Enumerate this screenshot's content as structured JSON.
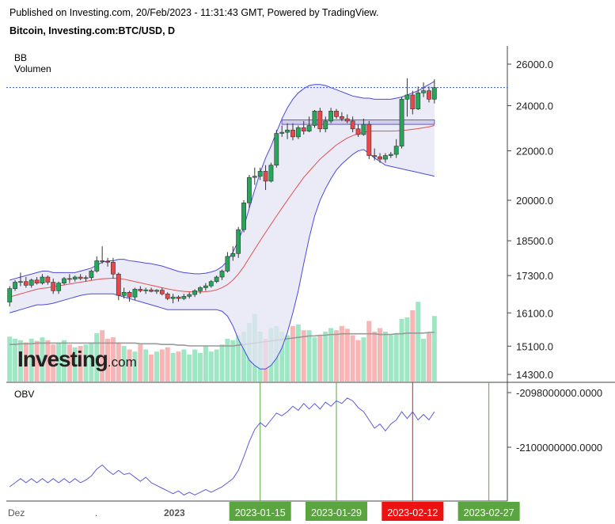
{
  "header": {
    "published": "Published on Investing.com, 20/Feb/2023 - 11:31:43 GMT, Powered by TradingView.",
    "symbol": "Bitcoin, Investing.com:BTC/USD, D"
  },
  "indicators": {
    "bb": "BB",
    "volume": "Volumen",
    "obv": "OBV"
  },
  "logo": {
    "main": "Investing",
    "suffix": ".com"
  },
  "colors": {
    "up": "#26a65b",
    "down": "#e8474b",
    "band": "#4a4adb",
    "band_fill": "#e4e4f4",
    "basis": "#e05050",
    "last_price": "#3b5bdb",
    "obv_line": "#5b5bdb",
    "vol_up": "#9ee6c4",
    "vol_down": "#f7b5b5",
    "vol_ma": "#999999",
    "date_green": "#5aa540",
    "date_red": "#ee1111"
  },
  "chart_data": [
    {
      "type": "candlestick",
      "name": "BTC/USD",
      "ylabel_ticks": [
        "26000.0",
        "24000.0",
        "22000.0",
        "20000.0",
        "18500.0",
        "17300.0",
        "16100.0",
        "15100.0",
        "14300.0"
      ],
      "ytick_values": [
        26000,
        24000,
        22000,
        20000,
        18500,
        17300,
        16100,
        15100,
        14300
      ],
      "y_scale": "log",
      "last_price": 24850,
      "x_labels": [
        "Dez",
        "2023",
        "2023-01-15",
        "2023-01-29",
        "2023-02-12",
        "2023-02-27"
      ],
      "x_label_positions": [
        0,
        32,
        46,
        60,
        74,
        88
      ],
      "ohlc": [
        [
          16440,
          16950,
          16300,
          16870
        ],
        [
          16870,
          17150,
          16800,
          17080
        ],
        [
          17080,
          17400,
          16950,
          17100
        ],
        [
          17100,
          17250,
          16900,
          16980
        ],
        [
          16980,
          17200,
          16900,
          17150
        ],
        [
          17150,
          17250,
          17000,
          17050
        ],
        [
          17050,
          17350,
          17000,
          17250
        ],
        [
          17250,
          17300,
          17000,
          17080
        ],
        [
          17080,
          17200,
          16700,
          16800
        ],
        [
          16800,
          17100,
          16700,
          17050
        ],
        [
          17050,
          17250,
          17000,
          17200
        ],
        [
          17200,
          17350,
          17050,
          17180
        ],
        [
          17180,
          17300,
          17100,
          17250
        ],
        [
          17250,
          17350,
          17150,
          17200
        ],
        [
          17200,
          17300,
          17100,
          17230
        ],
        [
          17230,
          17500,
          17150,
          17450
        ],
        [
          17450,
          17950,
          17400,
          17800
        ],
        [
          17800,
          18300,
          17700,
          17780
        ],
        [
          17780,
          17900,
          17600,
          17750
        ],
        [
          17750,
          17900,
          17200,
          17350
        ],
        [
          17350,
          17400,
          16500,
          16650
        ],
        [
          16650,
          16900,
          16550,
          16750
        ],
        [
          16750,
          16800,
          16450,
          16600
        ],
        [
          16600,
          16900,
          16500,
          16850
        ],
        [
          16850,
          16950,
          16750,
          16800
        ],
        [
          16800,
          16900,
          16700,
          16830
        ],
        [
          16830,
          16900,
          16750,
          16780
        ],
        [
          16780,
          16850,
          16700,
          16820
        ],
        [
          16820,
          16900,
          16650,
          16700
        ],
        [
          16700,
          16750,
          16500,
          16550
        ],
        [
          16550,
          16700,
          16400,
          16600
        ],
        [
          16600,
          16650,
          16450,
          16550
        ],
        [
          16550,
          16700,
          16500,
          16620
        ],
        [
          16620,
          16750,
          16550,
          16680
        ],
        [
          16680,
          16850,
          16600,
          16800
        ],
        [
          16800,
          16950,
          16700,
          16900
        ],
        [
          16900,
          17050,
          16800,
          16960
        ],
        [
          16960,
          17150,
          16900,
          17100
        ],
        [
          17100,
          17300,
          17050,
          17250
        ],
        [
          17250,
          17500,
          17150,
          17450
        ],
        [
          17450,
          18100,
          17400,
          17950
        ],
        [
          17950,
          18300,
          17800,
          18050
        ],
        [
          18050,
          19000,
          17900,
          18900
        ],
        [
          18900,
          20000,
          18800,
          19900
        ],
        [
          19900,
          21000,
          19700,
          20900
        ],
        [
          20900,
          21300,
          20600,
          20950
        ],
        [
          20950,
          21300,
          20800,
          21150
        ],
        [
          21150,
          21400,
          20400,
          20750
        ],
        [
          20750,
          21500,
          20700,
          21400
        ],
        [
          21400,
          22900,
          21300,
          22750
        ],
        [
          22750,
          23100,
          22600,
          22800
        ],
        [
          22800,
          23200,
          22500,
          22900
        ],
        [
          22900,
          23200,
          22450,
          22600
        ],
        [
          22600,
          23100,
          22500,
          23000
        ],
        [
          23000,
          23300,
          22700,
          22850
        ],
        [
          22850,
          23500,
          22800,
          23100
        ],
        [
          23100,
          23800,
          23000,
          23750
        ],
        [
          23750,
          23900,
          22800,
          22950
        ],
        [
          22950,
          23500,
          22800,
          23300
        ],
        [
          23300,
          23900,
          23200,
          23750
        ],
        [
          23750,
          23850,
          23400,
          23500
        ],
        [
          23500,
          23700,
          23300,
          23400
        ],
        [
          23400,
          23600,
          23200,
          23300
        ],
        [
          23300,
          23500,
          22800,
          22950
        ],
        [
          22950,
          23150,
          22600,
          22700
        ],
        [
          22700,
          23400,
          22650,
          23150
        ],
        [
          23150,
          23300,
          21650,
          21800
        ],
        [
          21800,
          22100,
          21600,
          21750
        ],
        [
          21750,
          21900,
          21500,
          21650
        ],
        [
          21650,
          21900,
          21500,
          21800
        ],
        [
          21800,
          21950,
          21700,
          21850
        ],
        [
          21850,
          22500,
          21700,
          22200
        ],
        [
          22200,
          24400,
          22100,
          24300
        ],
        [
          24300,
          25300,
          23500,
          24500
        ],
        [
          24500,
          24700,
          23600,
          23850
        ],
        [
          23850,
          24900,
          23800,
          24600
        ],
        [
          24600,
          25100,
          24400,
          24700
        ],
        [
          24700,
          24900,
          24150,
          24300
        ],
        [
          24300,
          25250,
          24100,
          24850
        ]
      ],
      "bollinger": {
        "upper": [
          17150,
          17200,
          17250,
          17300,
          17350,
          17400,
          17450,
          17450,
          17400,
          17400,
          17400,
          17400,
          17400,
          17450,
          17500,
          17550,
          17650,
          17750,
          17800,
          17800,
          17850,
          17850,
          17800,
          17780,
          17750,
          17720,
          17700,
          17660,
          17620,
          17560,
          17500,
          17440,
          17400,
          17380,
          17360,
          17360,
          17380,
          17420,
          17480,
          17600,
          17800,
          18100,
          18500,
          19000,
          19700,
          20400,
          21100,
          21700,
          22200,
          22800,
          23400,
          23900,
          24300,
          24600,
          24800,
          24950,
          25000,
          25000,
          24950,
          24850,
          24750,
          24650,
          24550,
          24450,
          24400,
          24350,
          24350,
          24300,
          24300,
          24300,
          24300,
          24350,
          24400,
          24500,
          24600,
          24700,
          24850,
          25000,
          25150
        ],
        "basis": [
          16600,
          16650,
          16700,
          16750,
          16800,
          16850,
          16880,
          16900,
          16930,
          16960,
          16990,
          17020,
          17050,
          17080,
          17110,
          17140,
          17170,
          17190,
          17200,
          17210,
          17200,
          17180,
          17140,
          17100,
          17060,
          17020,
          16980,
          16940,
          16900,
          16860,
          16830,
          16800,
          16780,
          16770,
          16760,
          16760,
          16770,
          16790,
          16830,
          16900,
          17000,
          17150,
          17350,
          17600,
          17900,
          18200,
          18500,
          18800,
          19100,
          19400,
          19700,
          20000,
          20300,
          20600,
          20900,
          21150,
          21400,
          21650,
          21850,
          22050,
          22250,
          22400,
          22550,
          22650,
          22750,
          22800,
          22850,
          22850,
          22850,
          22850,
          22850,
          22860,
          22880,
          22900,
          22930,
          22960,
          23000,
          23040,
          23100
        ],
        "lower": [
          16100,
          16150,
          16200,
          16250,
          16300,
          16350,
          16350,
          16370,
          16400,
          16450,
          16500,
          16550,
          16600,
          16650,
          16680,
          16700,
          16700,
          16700,
          16700,
          16700,
          16650,
          16600,
          16550,
          16500,
          16450,
          16400,
          16350,
          16300,
          16250,
          16200,
          16200,
          16200,
          16200,
          16200,
          16200,
          16200,
          16200,
          16200,
          16200,
          16150,
          16000,
          15700,
          15300,
          15000,
          14700,
          14550,
          14450,
          14450,
          14550,
          14750,
          15050,
          15500,
          16100,
          16800,
          17700,
          18600,
          19400,
          20000,
          20450,
          20850,
          21200,
          21450,
          21650,
          21850,
          22000,
          22050,
          21900,
          21700,
          21550,
          21400,
          21350,
          21300,
          21250,
          21200,
          21150,
          21100,
          21050,
          21000,
          20950
        ]
      },
      "volume": [
        63,
        60,
        58,
        55,
        60,
        57,
        62,
        58,
        52,
        55,
        58,
        52,
        48,
        50,
        52,
        55,
        68,
        72,
        60,
        62,
        55,
        50,
        45,
        42,
        52,
        45,
        38,
        42,
        45,
        48,
        40,
        42,
        45,
        38,
        45,
        40,
        50,
        42,
        45,
        52,
        60,
        58,
        65,
        70,
        82,
        95,
        70,
        60,
        75,
        78,
        70,
        65,
        78,
        80,
        72,
        72,
        62,
        65,
        70,
        75,
        72,
        78,
        74,
        65,
        58,
        62,
        85,
        70,
        75,
        70,
        65,
        68,
        88,
        90,
        100,
        112,
        60,
        68,
        92
      ],
      "volume_ma": [
        52,
        52,
        53,
        53,
        53,
        54,
        54,
        54,
        54,
        54,
        54,
        54,
        54,
        54,
        54,
        54,
        54,
        54,
        54,
        54,
        54,
        54,
        54,
        54,
        53,
        53,
        53,
        53,
        52,
        52,
        52,
        51,
        51,
        50,
        50,
        50,
        50,
        50,
        50,
        50,
        50,
        50,
        51,
        52,
        53,
        54,
        55,
        56,
        57,
        58,
        59,
        60,
        61,
        62,
        63,
        64,
        64,
        65,
        65,
        66,
        66,
        67,
        67,
        67,
        67,
        67,
        67,
        67,
        66,
        66,
        66,
        67,
        67,
        68,
        68,
        68,
        68,
        69,
        69
      ]
    },
    {
      "type": "line",
      "name": "OBV",
      "ylabel_ticks": [
        "-2098000000.0000",
        "-2100000000.0000"
      ],
      "ytick_values": [
        -2098000000,
        -2100000000
      ],
      "values": [
        -2101450000,
        -2101300000,
        -2101150000,
        -2101300000,
        -2101150000,
        -2101300000,
        -2101150000,
        -2101300000,
        -2101150000,
        -2101300000,
        -2101150000,
        -2101300000,
        -2101150000,
        -2101300000,
        -2101200000,
        -2101050000,
        -2100800000,
        -2100650000,
        -2100850000,
        -2101000000,
        -2100850000,
        -2101000000,
        -2100950000,
        -2101100000,
        -2101250000,
        -2101100000,
        -2101300000,
        -2101400000,
        -2101500000,
        -2101600000,
        -2101700000,
        -2101600000,
        -2101750000,
        -2101650000,
        -2101750000,
        -2101650000,
        -2101550000,
        -2101650000,
        -2101550000,
        -2101450000,
        -2101300000,
        -2101150000,
        -2100850000,
        -2100350000,
        -2099800000,
        -2099350000,
        -2099100000,
        -2099250000,
        -2099000000,
        -2098750000,
        -2098850000,
        -2098700000,
        -2098500000,
        -2098650000,
        -2098400000,
        -2098600000,
        -2098400000,
        -2098600000,
        -2098350000,
        -2098500000,
        -2098300000,
        -2098400000,
        -2098200000,
        -2098300000,
        -2098550000,
        -2098700000,
        -2099000000,
        -2099300000,
        -2099150000,
        -2099400000,
        -2099150000,
        -2099000000,
        -2098700000,
        -2098950000,
        -2098700000,
        -2099000000,
        -2098800000,
        -2099000000,
        -2098700000
      ]
    }
  ]
}
